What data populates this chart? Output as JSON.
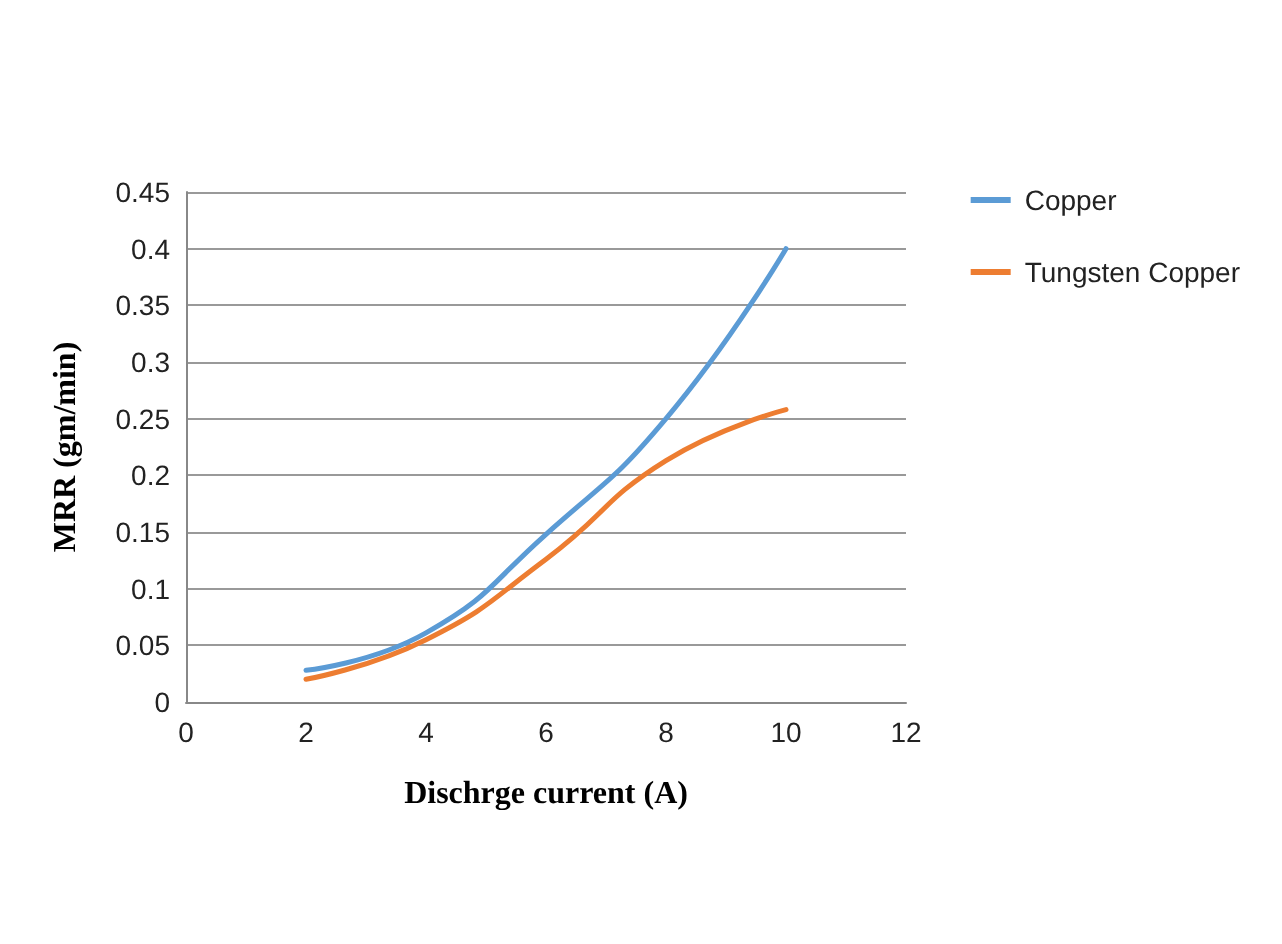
{
  "chart_data": {
    "type": "line",
    "xlabel": "Dischrge current (A)",
    "ylabel": "MRR (gm/min)",
    "x": [
      2,
      4,
      6,
      8,
      10
    ],
    "series": [
      {
        "name": "Copper",
        "color": "#5b9bd5",
        "values": [
          0.028,
          0.061,
          0.148,
          0.25,
          0.4
        ]
      },
      {
        "name": "Tungsten Copper",
        "color": "#ed7d31",
        "values": [
          0.02,
          0.055,
          0.126,
          0.213,
          0.258
        ]
      }
    ],
    "xlim": [
      0,
      12
    ],
    "xticks": [
      0,
      2,
      4,
      6,
      8,
      10,
      12
    ],
    "ylim": [
      0,
      0.45
    ],
    "yticks": [
      0,
      0.05,
      0.1,
      0.15,
      0.2,
      0.25,
      0.3,
      0.35,
      0.4,
      0.45
    ],
    "grid": "y",
    "legend": "right",
    "marker": "none",
    "line_style": "solid"
  }
}
